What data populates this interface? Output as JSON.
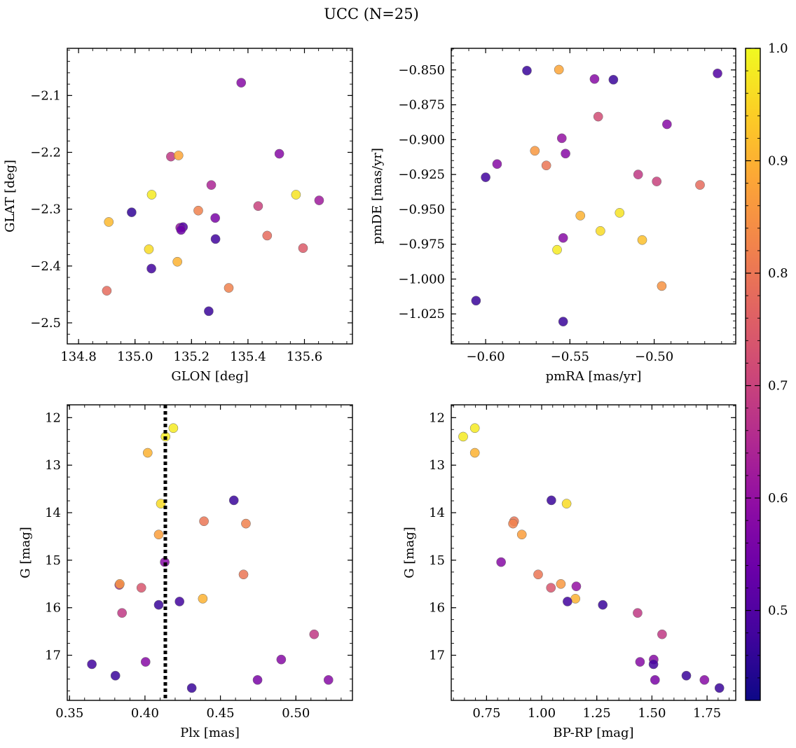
{
  "title": "UCC (N=25)",
  "colorbar": {
    "min": 0.42,
    "max": 1.0,
    "ticks": [
      0.5,
      0.6,
      0.7,
      0.8,
      0.9,
      1.0
    ],
    "tick_labels": [
      "0.5",
      "0.6",
      "0.7",
      "0.8",
      "0.9",
      "1.0"
    ],
    "colormap": "plasma"
  },
  "chart_data": [
    {
      "type": "scatter",
      "xlabel": "GLON [deg]",
      "ylabel": "GLAT [deg]",
      "xlim": [
        134.76,
        135.77
      ],
      "ylim": [
        -2.537,
        -2.017
      ],
      "xticks": [
        134.8,
        135.0,
        135.2,
        135.4,
        135.6
      ],
      "xtick_labels": [
        "134.8",
        "135.0",
        "135.2",
        "135.4",
        "135.6"
      ],
      "yticks": [
        -2.1,
        -2.2,
        -2.3,
        -2.4,
        -2.5
      ],
      "ytick_labels": [
        "−2.1",
        "−2.2",
        "−2.3",
        "−2.4",
        "−2.5"
      ],
      "points": [
        {
          "x": 135.376,
          "y": -2.0775,
          "c": 0.58
        },
        {
          "x": 135.127,
          "y": -2.2075,
          "c": 0.68
        },
        {
          "x": 135.154,
          "y": -2.2055,
          "c": 0.88
        },
        {
          "x": 135.511,
          "y": -2.2025,
          "c": 0.58
        },
        {
          "x": 135.27,
          "y": -2.2575,
          "c": 0.64
        },
        {
          "x": 135.059,
          "y": -2.2745,
          "c": 0.98
        },
        {
          "x": 135.57,
          "y": -2.2745,
          "c": 0.97
        },
        {
          "x": 135.652,
          "y": -2.2845,
          "c": 0.62
        },
        {
          "x": 135.436,
          "y": -2.2945,
          "c": 0.7
        },
        {
          "x": 135.224,
          "y": -2.3025,
          "c": 0.82
        },
        {
          "x": 134.988,
          "y": -2.3055,
          "c": 0.46
        },
        {
          "x": 135.284,
          "y": -2.3155,
          "c": 0.56
        },
        {
          "x": 134.907,
          "y": -2.3225,
          "c": 0.91
        },
        {
          "x": 135.16,
          "y": -2.3325,
          "c": 0.6
        },
        {
          "x": 135.17,
          "y": -2.3315,
          "c": 0.5
        },
        {
          "x": 135.163,
          "y": -2.3365,
          "c": 0.54
        },
        {
          "x": 135.468,
          "y": -2.3465,
          "c": 0.78
        },
        {
          "x": 135.285,
          "y": -2.3525,
          "c": 0.48
        },
        {
          "x": 135.595,
          "y": -2.3685,
          "c": 0.75
        },
        {
          "x": 135.049,
          "y": -2.3705,
          "c": 0.96
        },
        {
          "x": 135.15,
          "y": -2.3925,
          "c": 0.9
        },
        {
          "x": 135.058,
          "y": -2.4045,
          "c": 0.48
        },
        {
          "x": 135.332,
          "y": -2.4385,
          "c": 0.82
        },
        {
          "x": 134.9,
          "y": -2.4435,
          "c": 0.78
        },
        {
          "x": 135.261,
          "y": -2.4795,
          "c": 0.47
        }
      ]
    },
    {
      "type": "scatter",
      "xlabel": "pmRA [mas/yr]",
      "ylabel": "pmDE [mas/yr]",
      "xlim": [
        -0.6204,
        -0.4516
      ],
      "ylim": [
        -1.0465,
        -0.8345
      ],
      "xticks": [
        -0.6,
        -0.55,
        -0.5
      ],
      "xtick_labels": [
        "−0.60",
        "−0.55",
        "−0.50"
      ],
      "yticks": [
        -0.85,
        -0.875,
        -0.9,
        -0.925,
        -0.95,
        -0.975,
        -1.0,
        -1.025
      ],
      "ytick_labels": [
        "−0.850",
        "−0.875",
        "−0.900",
        "−0.925",
        "−0.950",
        "−0.975",
        "−1.000",
        "−1.025"
      ],
      "points": [
        {
          "x": -0.5755,
          "y": -0.8505,
          "c": 0.47
        },
        {
          "x": -0.5565,
          "y": -0.8498,
          "c": 0.88
        },
        {
          "x": -0.5354,
          "y": -0.8565,
          "c": 0.58
        },
        {
          "x": -0.5242,
          "y": -0.857,
          "c": 0.47
        },
        {
          "x": -0.4624,
          "y": -0.8525,
          "c": 0.5
        },
        {
          "x": -0.5332,
          "y": -0.8835,
          "c": 0.72
        },
        {
          "x": -0.4924,
          "y": -0.889,
          "c": 0.58
        },
        {
          "x": -0.5548,
          "y": -0.899,
          "c": 0.6
        },
        {
          "x": -0.5708,
          "y": -0.908,
          "c": 0.86
        },
        {
          "x": -0.5526,
          "y": -0.91,
          "c": 0.58
        },
        {
          "x": -0.5932,
          "y": -0.9175,
          "c": 0.58
        },
        {
          "x": -0.564,
          "y": -0.9185,
          "c": 0.8
        },
        {
          "x": -0.5095,
          "y": -0.925,
          "c": 0.68
        },
        {
          "x": -0.6,
          "y": -0.927,
          "c": 0.48
        },
        {
          "x": -0.4985,
          "y": -0.93,
          "c": 0.7
        },
        {
          "x": -0.4728,
          "y": -0.9325,
          "c": 0.78
        },
        {
          "x": -0.5205,
          "y": -0.9525,
          "c": 0.97
        },
        {
          "x": -0.5438,
          "y": -0.9545,
          "c": 0.9
        },
        {
          "x": -0.5319,
          "y": -0.9655,
          "c": 0.96
        },
        {
          "x": -0.554,
          "y": -0.9705,
          "c": 0.58
        },
        {
          "x": -0.5071,
          "y": -0.972,
          "c": 0.92
        },
        {
          "x": -0.5576,
          "y": -0.979,
          "c": 0.98
        },
        {
          "x": -0.4955,
          "y": -1.005,
          "c": 0.85
        },
        {
          "x": -0.6057,
          "y": -1.0155,
          "c": 0.47
        },
        {
          "x": -0.554,
          "y": -1.0305,
          "c": 0.47
        }
      ]
    },
    {
      "type": "scatter",
      "xlabel": "Plx [mas]",
      "ylabel": "G [mag]",
      "xlim": [
        0.3485,
        0.5375
      ],
      "ylim": [
        17.95,
        11.73
      ],
      "y_inverted": true,
      "xticks": [
        0.35,
        0.4,
        0.45,
        0.5
      ],
      "xtick_labels": [
        "0.35",
        "0.40",
        "0.45",
        "0.50"
      ],
      "yticks": [
        12,
        13,
        14,
        15,
        16,
        17
      ],
      "ytick_labels": [
        "12",
        "13",
        "14",
        "15",
        "16",
        "17"
      ],
      "vline": 0.4135,
      "points": [
        {
          "x": 0.4188,
          "y": 12.22,
          "c": 0.98
        },
        {
          "x": 0.4136,
          "y": 12.4,
          "c": 0.98
        },
        {
          "x": 0.4018,
          "y": 12.74,
          "c": 0.9
        },
        {
          "x": 0.4105,
          "y": 13.81,
          "c": 0.96
        },
        {
          "x": 0.4589,
          "y": 13.74,
          "c": 0.47
        },
        {
          "x": 0.4391,
          "y": 14.18,
          "c": 0.8
        },
        {
          "x": 0.4669,
          "y": 14.23,
          "c": 0.82
        },
        {
          "x": 0.4091,
          "y": 14.46,
          "c": 0.87
        },
        {
          "x": 0.4131,
          "y": 15.04,
          "c": 0.58
        },
        {
          "x": 0.4653,
          "y": 15.3,
          "c": 0.8
        },
        {
          "x": 0.383,
          "y": 15.52,
          "c": 0.64
        },
        {
          "x": 0.3833,
          "y": 15.5,
          "c": 0.86
        },
        {
          "x": 0.3976,
          "y": 15.58,
          "c": 0.74
        },
        {
          "x": 0.4383,
          "y": 15.81,
          "c": 0.9
        },
        {
          "x": 0.4229,
          "y": 15.87,
          "c": 0.48
        },
        {
          "x": 0.4091,
          "y": 15.94,
          "c": 0.47
        },
        {
          "x": 0.3848,
          "y": 16.11,
          "c": 0.68
        },
        {
          "x": 0.5121,
          "y": 16.56,
          "c": 0.68
        },
        {
          "x": 0.4903,
          "y": 17.09,
          "c": 0.58
        },
        {
          "x": 0.4004,
          "y": 17.14,
          "c": 0.58
        },
        {
          "x": 0.3648,
          "y": 17.19,
          "c": 0.48
        },
        {
          "x": 0.3804,
          "y": 17.43,
          "c": 0.47
        },
        {
          "x": 0.4746,
          "y": 17.52,
          "c": 0.56
        },
        {
          "x": 0.5216,
          "y": 17.52,
          "c": 0.58
        },
        {
          "x": 0.431,
          "y": 17.69,
          "c": 0.47
        }
      ]
    },
    {
      "type": "scatter",
      "xlabel": "BP-RP [mag]",
      "ylabel": "G [mag]",
      "xlim": [
        0.59,
        1.88
      ],
      "ylim": [
        17.95,
        11.73
      ],
      "y_inverted": true,
      "xticks": [
        0.75,
        1.0,
        1.25,
        1.5,
        1.75
      ],
      "xtick_labels": [
        "0.75",
        "1.00",
        "1.25",
        "1.50",
        "1.75"
      ],
      "yticks": [
        12,
        13,
        14,
        15,
        16,
        17
      ],
      "ytick_labels": [
        "12",
        "13",
        "14",
        "15",
        "16",
        "17"
      ],
      "points": [
        {
          "x": 0.697,
          "y": 12.22,
          "c": 0.98
        },
        {
          "x": 0.644,
          "y": 12.4,
          "c": 0.98
        },
        {
          "x": 0.697,
          "y": 12.74,
          "c": 0.9
        },
        {
          "x": 1.044,
          "y": 13.74,
          "c": 0.47
        },
        {
          "x": 1.113,
          "y": 13.81,
          "c": 0.96
        },
        {
          "x": 0.875,
          "y": 14.18,
          "c": 0.8
        },
        {
          "x": 0.87,
          "y": 14.23,
          "c": 0.82
        },
        {
          "x": 0.91,
          "y": 14.46,
          "c": 0.87
        },
        {
          "x": 0.816,
          "y": 15.04,
          "c": 0.58
        },
        {
          "x": 0.984,
          "y": 15.3,
          "c": 0.8
        },
        {
          "x": 1.087,
          "y": 15.5,
          "c": 0.86
        },
        {
          "x": 1.157,
          "y": 15.55,
          "c": 0.6
        },
        {
          "x": 1.042,
          "y": 15.58,
          "c": 0.74
        },
        {
          "x": 1.153,
          "y": 15.81,
          "c": 0.9
        },
        {
          "x": 1.117,
          "y": 15.87,
          "c": 0.48
        },
        {
          "x": 1.277,
          "y": 15.94,
          "c": 0.47
        },
        {
          "x": 1.435,
          "y": 16.11,
          "c": 0.68
        },
        {
          "x": 1.546,
          "y": 16.56,
          "c": 0.68
        },
        {
          "x": 1.508,
          "y": 17.09,
          "c": 0.58
        },
        {
          "x": 1.446,
          "y": 17.14,
          "c": 0.58
        },
        {
          "x": 1.507,
          "y": 17.19,
          "c": 0.48
        },
        {
          "x": 1.656,
          "y": 17.43,
          "c": 0.47
        },
        {
          "x": 1.514,
          "y": 17.52,
          "c": 0.56
        },
        {
          "x": 1.738,
          "y": 17.52,
          "c": 0.58
        },
        {
          "x": 1.806,
          "y": 17.69,
          "c": 0.47
        }
      ]
    }
  ]
}
